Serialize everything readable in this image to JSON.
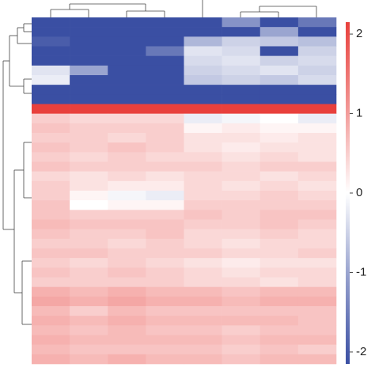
{
  "chart_data": {
    "type": "heatmap",
    "values": [
      [
        -2,
        -2,
        -2,
        -2,
        -2,
        -1.2,
        -2,
        -1.5
      ],
      [
        -2,
        -2,
        -2,
        -2,
        -2,
        -2,
        -1,
        -2
      ],
      [
        -1.8,
        -2,
        -2,
        -2,
        -0.8,
        -0.5,
        -0.6,
        -0.7
      ],
      [
        -2,
        -2,
        -2,
        -1.5,
        -0.3,
        -0.4,
        -2,
        -0.5
      ],
      [
        -2,
        -2,
        -2,
        -2,
        -0.4,
        -0.3,
        -0.5,
        -0.4
      ],
      [
        -0.3,
        -1,
        -2,
        -2,
        -0.5,
        -0.4,
        -0.3,
        -0.5
      ],
      [
        -0.2,
        -2,
        -2,
        -2,
        -0.6,
        -0.5,
        -0.6,
        -0.4
      ],
      [
        -2,
        -2,
        -2,
        -2,
        -2,
        -2,
        -2,
        -2
      ],
      [
        -2,
        -2,
        -2,
        -2,
        -2,
        -2,
        -2,
        -2
      ],
      [
        2,
        2,
        2,
        2,
        2,
        2,
        2,
        2
      ],
      [
        0.5,
        0.4,
        0.4,
        0.4,
        -0.2,
        -0.1,
        0,
        -0.2
      ],
      [
        0.6,
        0.5,
        0.5,
        0.5,
        0.1,
        0.2,
        0.1,
        0.1
      ],
      [
        0.5,
        0.5,
        0.4,
        0.5,
        0.3,
        0.3,
        0.2,
        0.3
      ],
      [
        0.6,
        0.5,
        0.6,
        0.5,
        0.3,
        0.2,
        0.3,
        0.3
      ],
      [
        0.5,
        0.4,
        0.5,
        0.4,
        0.4,
        0.3,
        0.4,
        0.3
      ],
      [
        0.6,
        0.5,
        0.5,
        0.5,
        0.5,
        0.4,
        0.5,
        0.5
      ],
      [
        0.4,
        0.3,
        0.4,
        0.3,
        0.4,
        0.4,
        0.3,
        0.4
      ],
      [
        0.5,
        0.3,
        0.2,
        0.2,
        0.4,
        0.3,
        0.4,
        0.3
      ],
      [
        0.5,
        0.1,
        -0.1,
        -0.2,
        0.4,
        0.4,
        0.5,
        0.4
      ],
      [
        0.6,
        0.0,
        0.1,
        0.1,
        0.5,
        0.5,
        0.5,
        0.5
      ],
      [
        0.6,
        0.5,
        0.5,
        0.5,
        0.6,
        0.5,
        0.6,
        0.6
      ],
      [
        0.7,
        0.6,
        0.6,
        0.6,
        0.5,
        0.5,
        0.6,
        0.5
      ],
      [
        0.6,
        0.5,
        0.5,
        0.6,
        0.4,
        0.4,
        0.5,
        0.4
      ],
      [
        0.5,
        0.5,
        0.4,
        0.5,
        0.4,
        0.3,
        0.4,
        0.4
      ],
      [
        0.6,
        0.6,
        0.5,
        0.5,
        0.5,
        0.4,
        0.4,
        0.5
      ],
      [
        0.5,
        0.4,
        0.5,
        0.4,
        0.3,
        0.2,
        0.3,
        0.3
      ],
      [
        0.6,
        0.5,
        0.6,
        0.5,
        0.4,
        0.3,
        0.4,
        0.4
      ],
      [
        0.5,
        0.5,
        0.5,
        0.5,
        0.4,
        0.4,
        0.3,
        0.4
      ],
      [
        0.8,
        0.7,
        0.8,
        0.7,
        0.7,
        0.6,
        0.7,
        0.7
      ],
      [
        0.9,
        0.8,
        0.9,
        0.8,
        0.8,
        0.7,
        0.8,
        0.8
      ],
      [
        0.7,
        0.5,
        0.7,
        0.6,
        0.6,
        0.6,
        0.6,
        0.6
      ],
      [
        0.8,
        0.7,
        0.8,
        0.7,
        0.7,
        0.7,
        0.7,
        0.6
      ],
      [
        0.7,
        0.6,
        0.7,
        0.6,
        0.6,
        0.5,
        0.6,
        0.6
      ],
      [
        0.8,
        0.7,
        0.7,
        0.7,
        0.7,
        0.6,
        0.7,
        0.7
      ],
      [
        0.7,
        0.6,
        0.6,
        0.6,
        0.6,
        0.5,
        0.6,
        0.5
      ],
      [
        0.8,
        0.7,
        0.8,
        0.7,
        0.7,
        0.6,
        0.7,
        0.7
      ]
    ],
    "clim": [
      -2.15,
      2.15
    ],
    "cticks": [
      -2,
      -1,
      0,
      1,
      2
    ],
    "low_color": "#3a4fa3",
    "mid_color": "#ffffff",
    "high_color": "#e8403c"
  }
}
